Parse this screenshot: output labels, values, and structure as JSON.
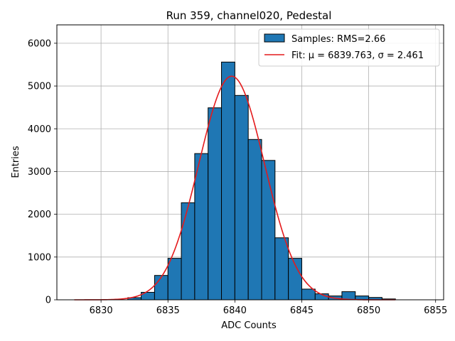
{
  "chart_data": {
    "type": "bar",
    "title": "Run 359, channel020, Pedestal",
    "xlabel": "ADC Counts",
    "ylabel": "Entries",
    "xlim": [
      6826.7,
      6855.6
    ],
    "ylim": [
      0,
      6430
    ],
    "xticks": [
      6830,
      6835,
      6840,
      6845,
      6850,
      6855
    ],
    "yticks": [
      0,
      1000,
      2000,
      3000,
      4000,
      5000,
      6000
    ],
    "grid": true,
    "legend_position": "top-right",
    "bins": {
      "edges": [
        6828,
        6829,
        6830,
        6831,
        6832,
        6833,
        6834,
        6835,
        6836,
        6837,
        6838,
        6839,
        6840,
        6841,
        6842,
        6843,
        6844,
        6845,
        6846,
        6847,
        6848,
        6849,
        6850,
        6851,
        6852
      ],
      "counts": [
        0,
        0,
        0,
        0,
        50,
        175,
        570,
        970,
        2270,
        3420,
        4490,
        5560,
        4780,
        3750,
        3260,
        1450,
        970,
        250,
        140,
        90,
        190,
        90,
        55,
        20
      ]
    },
    "fit": {
      "mu": 6839.763,
      "sigma": 2.461,
      "amplitude": 5230,
      "x_range": [
        6828,
        6852
      ]
    },
    "series": [
      {
        "name": "Samples: RMS=2.66",
        "kind": "histogram",
        "color": "#1f77b4",
        "edge_color": "#000000"
      },
      {
        "name": "Fit: μ = 6839.763, σ = 2.461",
        "kind": "line",
        "color": "#e41a1c"
      }
    ]
  }
}
